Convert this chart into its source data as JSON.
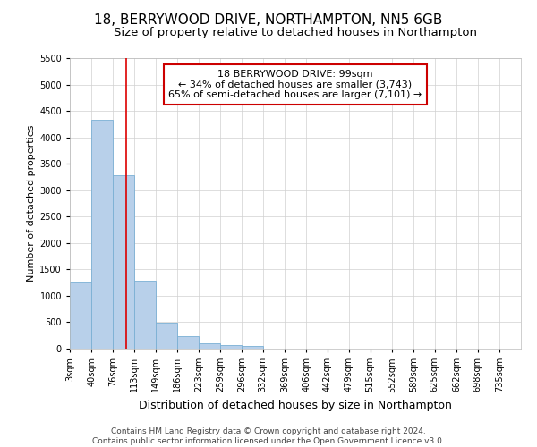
{
  "title": "18, BERRYWOOD DRIVE, NORTHAMPTON, NN5 6GB",
  "subtitle": "Size of property relative to detached houses in Northampton",
  "xlabel": "Distribution of detached houses by size in Northampton",
  "ylabel": "Number of detached properties",
  "footer_line1": "Contains HM Land Registry data © Crown copyright and database right 2024.",
  "footer_line2": "Contains public sector information licensed under the Open Government Licence v3.0.",
  "annotation_line1": "18 BERRYWOOD DRIVE: 99sqm",
  "annotation_line2": "← 34% of detached houses are smaller (3,743)",
  "annotation_line3": "65% of semi-detached houses are larger (7,101) →",
  "property_size": 99,
  "categories": [
    "3sqm",
    "40sqm",
    "76sqm",
    "113sqm",
    "149sqm",
    "186sqm",
    "223sqm",
    "259sqm",
    "296sqm",
    "332sqm",
    "369sqm",
    "406sqm",
    "442sqm",
    "479sqm",
    "515sqm",
    "552sqm",
    "589sqm",
    "625sqm",
    "662sqm",
    "698sqm",
    "735sqm"
  ],
  "bin_edges": [
    3,
    40,
    76,
    113,
    149,
    186,
    223,
    259,
    296,
    332,
    369,
    406,
    442,
    479,
    515,
    552,
    589,
    625,
    662,
    698,
    735
  ],
  "bin_width": 37,
  "values": [
    1270,
    4340,
    3290,
    1280,
    490,
    235,
    100,
    70,
    55,
    0,
    0,
    0,
    0,
    0,
    0,
    0,
    0,
    0,
    0,
    0,
    0
  ],
  "bar_color": "#b8d0ea",
  "bar_edge_color": "#7aafd4",
  "grid_color": "#d0d0d0",
  "red_line_color": "#dd0000",
  "annotation_box_edge_color": "#cc0000",
  "ylim": [
    0,
    5500
  ],
  "yticks": [
    0,
    500,
    1000,
    1500,
    2000,
    2500,
    3000,
    3500,
    4000,
    4500,
    5000,
    5500
  ],
  "background_color": "#ffffff",
  "title_fontsize": 11,
  "subtitle_fontsize": 9.5,
  "xlabel_fontsize": 9,
  "ylabel_fontsize": 8,
  "tick_fontsize": 7,
  "annotation_fontsize": 8,
  "footer_fontsize": 6.5
}
